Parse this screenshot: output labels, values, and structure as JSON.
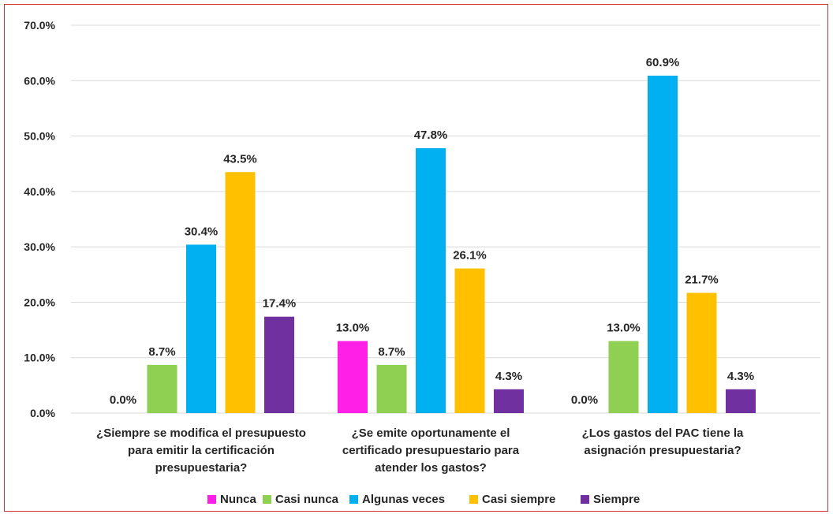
{
  "chart_data": {
    "type": "bar",
    "categories": [
      [
        "¿Siempre se modifica el presupuesto",
        "para emitir la certificación",
        "presupuestaria?"
      ],
      [
        "¿Se emite oportunamente el",
        "certificado presupuestario para",
        "atender los gastos?"
      ],
      [
        "¿Los gastos del PAC tiene la",
        "asignación presupuestaria?"
      ]
    ],
    "series": [
      {
        "name": "Nunca",
        "color": "#ff1fe6",
        "values": [
          0.0,
          13.0,
          0.0
        ],
        "labels": [
          "0.0%",
          "13.0%",
          "0.0%"
        ]
      },
      {
        "name": "Casi nunca",
        "color": "#8fcf52",
        "values": [
          8.7,
          8.7,
          13.0
        ],
        "labels": [
          "8.7%",
          "8.7%",
          "13.0%"
        ]
      },
      {
        "name": "Algunas veces",
        "color": "#00b0f0",
        "values": [
          30.4,
          47.8,
          60.9
        ],
        "labels": [
          "30.4%",
          "47.8%",
          "60.9%"
        ]
      },
      {
        "name": "Casi siempre",
        "color": "#ffc000",
        "values": [
          43.5,
          26.1,
          21.7
        ],
        "labels": [
          "43.5%",
          "26.1%",
          "21.7%"
        ]
      },
      {
        "name": "Siempre",
        "color": "#7030a0",
        "values": [
          17.4,
          4.3,
          4.3
        ],
        "labels": [
          "17.4%",
          "4.3%",
          "4.3%"
        ]
      }
    ],
    "y_ticks": [
      "0.0%",
      "10.0%",
      "20.0%",
      "30.0%",
      "40.0%",
      "50.0%",
      "60.0%",
      "70.0%"
    ],
    "ylim": [
      0,
      70
    ],
    "grid": true,
    "legend_position": "bottom"
  }
}
